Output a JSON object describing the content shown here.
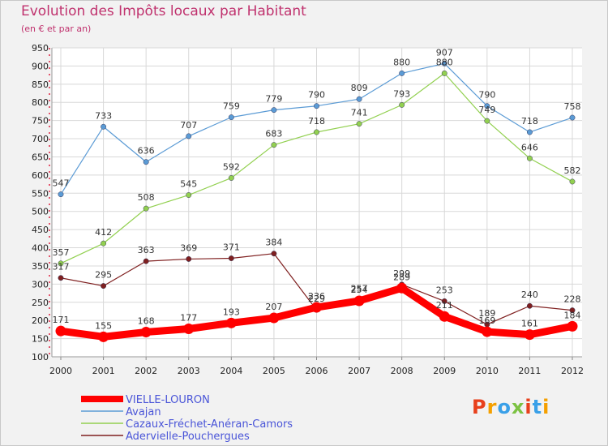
{
  "header": {
    "title": "Evolution des Impôts locaux par Habitant",
    "subtitle": "(en € et par an)"
  },
  "logo": {
    "text": "Proxiti",
    "colors": [
      "#e8401c",
      "#f5a000",
      "#3aa0e8",
      "#7cc242",
      "#e8401c",
      "#3aa0e8",
      "#f5a000"
    ]
  },
  "chart_data": {
    "type": "line",
    "title": "Evolution des Impôts locaux par Habitant",
    "subtitle": "(en € et par an)",
    "x": [
      "2000",
      "2001",
      "2002",
      "2003",
      "2004",
      "2005",
      "2006",
      "2007",
      "2008",
      "2009",
      "2010",
      "2011",
      "2012"
    ],
    "ylim": [
      100,
      950
    ],
    "yticks": [
      100,
      150,
      200,
      250,
      300,
      350,
      400,
      450,
      500,
      550,
      600,
      650,
      700,
      750,
      800,
      850,
      900,
      950
    ],
    "grid": true,
    "legend_position": "bottom-left",
    "series": [
      {
        "name": "VIELLE-LOURON",
        "color": "#ff0000",
        "values": [
          171,
          155,
          168,
          177,
          193,
          207,
          236,
          254,
          289,
          211,
          169,
          161,
          184
        ]
      },
      {
        "name": "Avajan",
        "color": "#5b9bd5",
        "values": [
          547,
          733,
          636,
          707,
          759,
          779,
          790,
          809,
          880,
          907,
          790,
          718,
          758
        ]
      },
      {
        "name": "Cazaux-Fréchet-Anéran-Camors",
        "color": "#92d050",
        "values": [
          357,
          412,
          508,
          545,
          592,
          683,
          718,
          741,
          793,
          880,
          749,
          646,
          582
        ]
      },
      {
        "name": "Adervielle-Pouchergues",
        "color": "#7f1f1f",
        "values": [
          317,
          295,
          363,
          369,
          371,
          384,
          229,
          257,
          299,
          253,
          189,
          240,
          228
        ]
      }
    ]
  }
}
